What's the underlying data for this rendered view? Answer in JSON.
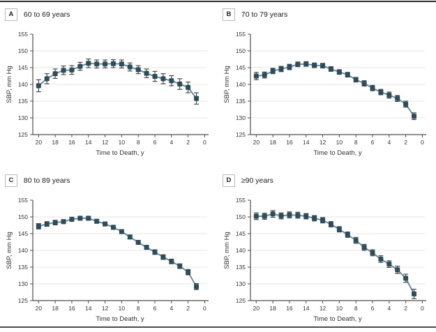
{
  "figure": {
    "panels": [
      "A",
      "B",
      "C",
      "D"
    ]
  },
  "style": {
    "marker_color": "#2e4c5a",
    "line_color": "#5a7d8c",
    "error_color": "#3d3d3d",
    "grid_color": "#e4e4e4",
    "axis_color": "#4d4d4d",
    "text_color": "#333333"
  },
  "chart_data": [
    {
      "type": "line",
      "panel_label": "A",
      "title": "60 to 69 years",
      "xlabel": "Time to Death, y",
      "ylabel": "SBP, mm Hg",
      "ylim": [
        125,
        155
      ],
      "xlim": [
        21,
        0
      ],
      "x_reversed": true,
      "grid": "horizontal",
      "legend": "none",
      "yticks": [
        125,
        130,
        135,
        140,
        145,
        150,
        155
      ],
      "xticks": [
        20,
        18,
        16,
        14,
        12,
        10,
        8,
        6,
        4,
        2,
        0
      ],
      "x": [
        20,
        19,
        18,
        17,
        16,
        15,
        14,
        13,
        12,
        11,
        10,
        9,
        8,
        7,
        6,
        5,
        4,
        3,
        2,
        1
      ],
      "y": [
        139.6,
        141.7,
        143.2,
        144.2,
        144.3,
        145.4,
        146.3,
        146.1,
        146.1,
        146.2,
        146.1,
        145.2,
        144.4,
        143.3,
        142.4,
        141.7,
        141.1,
        140.1,
        139.1,
        135.8
      ],
      "yerr": [
        1.8,
        1.5,
        1.4,
        1.3,
        1.3,
        1.2,
        1.3,
        1.2,
        1.2,
        1.2,
        1.2,
        1.2,
        1.2,
        1.3,
        1.5,
        1.5,
        1.5,
        1.6,
        1.6,
        1.7
      ]
    },
    {
      "type": "line",
      "panel_label": "B",
      "title": "70 to 79 years",
      "xlabel": "Time to Death, y",
      "ylabel": "SBP, mm Hg",
      "ylim": [
        125,
        155
      ],
      "xlim": [
        21,
        0
      ],
      "x_reversed": true,
      "grid": "horizontal",
      "legend": "none",
      "yticks": [
        125,
        130,
        135,
        140,
        145,
        150,
        155
      ],
      "xticks": [
        20,
        18,
        16,
        14,
        12,
        10,
        8,
        6,
        4,
        2,
        0
      ],
      "x": [
        20,
        19,
        18,
        17,
        16,
        15,
        14,
        13,
        12,
        11,
        10,
        9,
        8,
        7,
        6,
        5,
        4,
        3,
        2,
        1
      ],
      "y": [
        142.5,
        142.8,
        144.0,
        144.6,
        145.2,
        146.0,
        146.1,
        145.7,
        145.6,
        144.6,
        143.7,
        142.9,
        141.4,
        140.3,
        138.9,
        137.7,
        136.8,
        135.8,
        134.1,
        130.5
      ],
      "yerr": [
        1.1,
        0.9,
        0.8,
        0.8,
        0.8,
        0.7,
        0.7,
        0.7,
        0.7,
        0.7,
        0.7,
        0.7,
        0.7,
        0.8,
        0.8,
        0.8,
        0.9,
        0.9,
        0.9,
        1.0
      ]
    },
    {
      "type": "line",
      "panel_label": "C",
      "title": "80 to 89 years",
      "xlabel": "Time to Death, y",
      "ylabel": "SBP, mm Hg",
      "ylim": [
        125,
        155
      ],
      "xlim": [
        21,
        0
      ],
      "x_reversed": true,
      "grid": "horizontal",
      "legend": "none",
      "yticks": [
        125,
        130,
        135,
        140,
        145,
        150,
        155
      ],
      "xticks": [
        20,
        18,
        16,
        14,
        12,
        10,
        8,
        6,
        4,
        2,
        0
      ],
      "x": [
        20,
        19,
        18,
        17,
        16,
        15,
        14,
        13,
        12,
        11,
        10,
        9,
        8,
        7,
        6,
        5,
        4,
        3,
        2,
        1
      ],
      "y": [
        147.2,
        147.9,
        148.3,
        148.6,
        149.3,
        149.6,
        149.6,
        148.7,
        147.9,
        146.9,
        145.6,
        144.0,
        142.4,
        140.9,
        139.5,
        138.0,
        136.7,
        135.3,
        133.5,
        129.2
      ],
      "yerr": [
        0.8,
        0.7,
        0.7,
        0.6,
        0.6,
        0.6,
        0.6,
        0.6,
        0.6,
        0.6,
        0.6,
        0.6,
        0.6,
        0.6,
        0.7,
        0.7,
        0.7,
        0.7,
        0.8,
        0.9
      ]
    },
    {
      "type": "line",
      "panel_label": "D",
      "title": "≥90 years",
      "xlabel": "Time to Death, y",
      "ylabel": "SBP, mm Hg",
      "ylim": [
        125,
        155
      ],
      "xlim": [
        21,
        0
      ],
      "x_reversed": true,
      "grid": "horizontal",
      "legend": "none",
      "yticks": [
        125,
        130,
        135,
        140,
        145,
        150,
        155
      ],
      "xticks": [
        20,
        18,
        16,
        14,
        12,
        10,
        8,
        6,
        4,
        2,
        0
      ],
      "x": [
        20,
        19,
        18,
        17,
        16,
        15,
        14,
        13,
        12,
        11,
        10,
        9,
        8,
        7,
        6,
        5,
        4,
        3,
        2,
        1
      ],
      "y": [
        150.2,
        150.2,
        150.9,
        150.3,
        150.6,
        150.5,
        150.2,
        149.6,
        149.0,
        147.8,
        146.3,
        144.7,
        143.0,
        140.9,
        139.3,
        137.4,
        135.9,
        134.2,
        131.7,
        127.0
      ],
      "yerr": [
        1.0,
        0.9,
        1.0,
        0.9,
        0.9,
        0.9,
        0.8,
        0.8,
        0.8,
        0.8,
        0.8,
        0.8,
        0.9,
        0.9,
        0.9,
        1.0,
        1.0,
        1.1,
        1.2,
        1.4
      ]
    }
  ]
}
